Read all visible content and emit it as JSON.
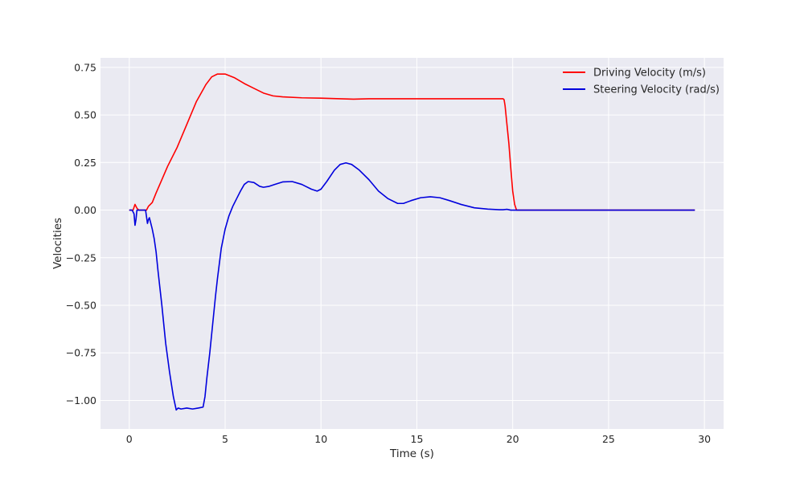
{
  "chart_data": {
    "type": "line",
    "title": "",
    "xlabel": "Time (s)",
    "ylabel": "Velocities",
    "xlim": [
      -1.5,
      31
    ],
    "ylim": [
      -1.15,
      0.8
    ],
    "xticks": [
      0,
      5,
      10,
      15,
      20,
      25,
      30
    ],
    "xtick_labels": [
      "0",
      "5",
      "10",
      "15",
      "20",
      "25",
      "30"
    ],
    "yticks": [
      0.75,
      0.5,
      0.25,
      0.0,
      -0.25,
      -0.5,
      -0.75,
      -1.0
    ],
    "ytick_labels": [
      "0.75",
      "0.50",
      "0.25",
      "0.00",
      "−0.25",
      "−0.50",
      "−0.75",
      "−1.00"
    ],
    "grid": true,
    "legend_position": "top-right",
    "background": "#eaeaf2",
    "series": [
      {
        "name": "Driving Velocity (m/s)",
        "color": "#ff0000",
        "x": [
          0,
          0.2,
          0.3,
          0.4,
          0.5,
          0.7,
          0.9,
          1.0,
          1.1,
          1.2,
          1.4,
          1.7,
          2.0,
          2.5,
          3.0,
          3.5,
          4.0,
          4.3,
          4.6,
          5.0,
          5.5,
          6.0,
          6.5,
          7.0,
          7.5,
          8.0,
          9.0,
          10.0,
          11.0,
          11.7,
          12.5,
          14.0,
          16.0,
          18.0,
          19.0,
          19.5,
          19.55,
          19.6,
          19.7,
          19.8,
          19.9,
          20.0,
          20.1,
          20.2,
          21.0,
          23.0,
          25.0,
          27.0,
          29.5
        ],
        "y": [
          0.0,
          0.0,
          0.03,
          0.01,
          0.0,
          0.0,
          0.0,
          0.02,
          0.03,
          0.04,
          0.09,
          0.16,
          0.23,
          0.33,
          0.45,
          0.57,
          0.66,
          0.7,
          0.715,
          0.715,
          0.695,
          0.665,
          0.64,
          0.615,
          0.6,
          0.595,
          0.59,
          0.588,
          0.585,
          0.583,
          0.585,
          0.585,
          0.585,
          0.585,
          0.585,
          0.585,
          0.58,
          0.55,
          0.45,
          0.35,
          0.22,
          0.1,
          0.03,
          0.0,
          0.0,
          0.0,
          0.0,
          0.0,
          0.0
        ]
      },
      {
        "name": "Steering Velocity (rad/s)",
        "color": "#0000dd",
        "x": [
          0,
          0.15,
          0.25,
          0.3,
          0.35,
          0.4,
          0.45,
          0.5,
          0.7,
          0.85,
          0.95,
          1.0,
          1.05,
          1.1,
          1.15,
          1.2,
          1.3,
          1.4,
          1.5,
          1.7,
          1.9,
          2.1,
          2.3,
          2.45,
          2.55,
          2.7,
          3.0,
          3.3,
          3.6,
          3.85,
          3.95,
          4.05,
          4.2,
          4.35,
          4.5,
          4.6,
          4.7,
          4.8,
          5.0,
          5.2,
          5.4,
          5.6,
          5.8,
          6.0,
          6.2,
          6.5,
          6.8,
          7.0,
          7.3,
          7.6,
          8.0,
          8.5,
          9.0,
          9.5,
          9.8,
          10.0,
          10.3,
          10.7,
          11.0,
          11.3,
          11.6,
          12.0,
          12.5,
          13.0,
          13.5,
          14.0,
          14.3,
          14.7,
          15.2,
          15.7,
          16.2,
          16.7,
          17.3,
          18.0,
          18.7,
          19.3,
          19.5,
          19.7,
          19.9,
          20.1,
          20.3,
          21.0,
          23.0,
          25.0,
          27.0,
          29.5
        ],
        "y": [
          0.0,
          0.0,
          -0.02,
          -0.08,
          -0.05,
          0.0,
          0.0,
          0.0,
          0.0,
          0.0,
          -0.07,
          -0.05,
          -0.04,
          -0.06,
          -0.08,
          -0.1,
          -0.15,
          -0.22,
          -0.32,
          -0.5,
          -0.7,
          -0.85,
          -0.98,
          -1.05,
          -1.04,
          -1.045,
          -1.04,
          -1.045,
          -1.04,
          -1.035,
          -0.98,
          -0.88,
          -0.75,
          -0.6,
          -0.45,
          -0.36,
          -0.28,
          -0.2,
          -0.1,
          -0.03,
          0.02,
          0.06,
          0.1,
          0.135,
          0.15,
          0.145,
          0.125,
          0.12,
          0.125,
          0.135,
          0.148,
          0.15,
          0.135,
          0.11,
          0.1,
          0.11,
          0.15,
          0.21,
          0.24,
          0.248,
          0.24,
          0.21,
          0.16,
          0.1,
          0.06,
          0.035,
          0.035,
          0.05,
          0.065,
          0.07,
          0.065,
          0.05,
          0.03,
          0.012,
          0.005,
          0.002,
          0.002,
          0.004,
          0.0,
          0.0,
          0.0,
          0.0,
          0.0,
          0.0,
          0.0,
          0.0
        ]
      }
    ]
  }
}
